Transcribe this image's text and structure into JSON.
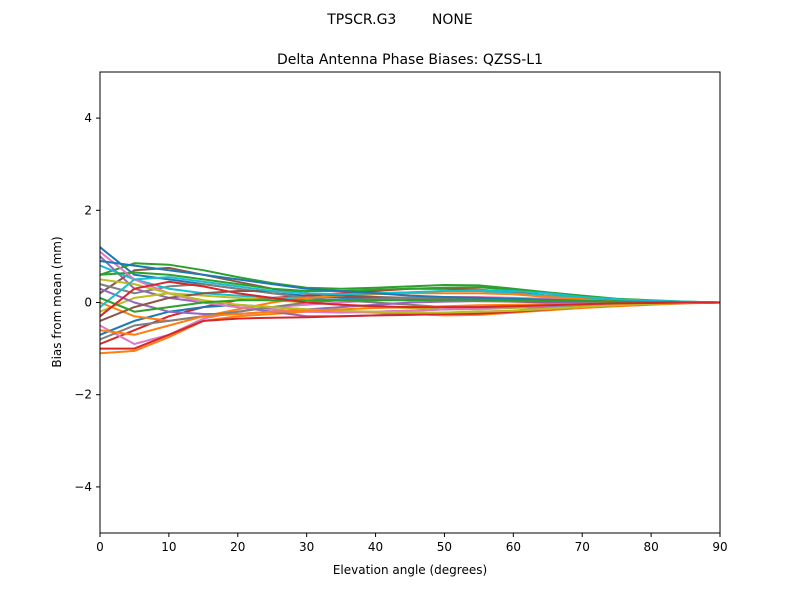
{
  "chart_data": {
    "type": "line",
    "suptitle": "TPSCR.G3        NONE",
    "title": "Delta Antenna Phase Biases: QZSS-L1",
    "xlabel": "Elevation angle (degrees)",
    "ylabel": "Bias from mean (mm)",
    "xlim": [
      0,
      90
    ],
    "ylim": [
      -5,
      5
    ],
    "xticks": [
      0,
      10,
      20,
      30,
      40,
      50,
      60,
      70,
      80,
      90
    ],
    "yticks": [
      -4,
      -2,
      0,
      2,
      4
    ],
    "ytick_labels": [
      "−4",
      "−2",
      "0",
      "2",
      "4"
    ],
    "grid": false,
    "colors": [
      "#1f77b4",
      "#ff7f0e",
      "#2ca02c",
      "#d62728",
      "#9467bd",
      "#8c564b",
      "#e377c2",
      "#7f7f7f",
      "#bcbd22",
      "#17becf"
    ],
    "x": [
      0,
      5,
      10,
      15,
      20,
      25,
      30,
      35,
      40,
      45,
      50,
      55,
      60,
      65,
      70,
      75,
      80,
      85,
      90
    ],
    "series": [
      {
        "values": [
          1.2,
          0.6,
          0.5,
          0.4,
          0.3,
          0.2,
          0.15,
          0.1,
          0.1,
          0.1,
          0.1,
          0.08,
          0.06,
          0.05,
          0.03,
          0.02,
          0.01,
          0.01,
          0
        ]
      },
      {
        "values": [
          -1.1,
          -1.05,
          -0.75,
          -0.4,
          -0.3,
          -0.25,
          -0.2,
          -0.2,
          -0.22,
          -0.25,
          -0.28,
          -0.27,
          -0.22,
          -0.17,
          -0.12,
          -0.08,
          -0.05,
          -0.02,
          0
        ]
      },
      {
        "values": [
          0.6,
          0.85,
          0.82,
          0.7,
          0.55,
          0.42,
          0.32,
          0.3,
          0.32,
          0.35,
          0.38,
          0.37,
          0.3,
          0.22,
          0.15,
          0.08,
          0.05,
          0.02,
          0
        ]
      },
      {
        "values": [
          -0.9,
          -0.6,
          -0.3,
          -0.1,
          0.05,
          0.1,
          0.15,
          0.2,
          0.25,
          0.3,
          0.3,
          0.28,
          0.22,
          0.15,
          0.1,
          0.05,
          0.03,
          0.01,
          0
        ]
      },
      {
        "values": [
          1.0,
          0.3,
          0.1,
          0,
          -0.1,
          -0.2,
          -0.3,
          -0.3,
          -0.28,
          -0.25,
          -0.22,
          -0.2,
          -0.18,
          -0.12,
          -0.08,
          -0.04,
          -0.02,
          -0.01,
          0
        ]
      },
      {
        "values": [
          0.2,
          0.7,
          0.75,
          0.6,
          0.45,
          0.3,
          0.2,
          0.15,
          0.1,
          0.08,
          0.05,
          0.03,
          0.02,
          0,
          -0.02,
          -0.02,
          -0.01,
          0,
          0
        ]
      },
      {
        "values": [
          -0.5,
          -0.9,
          -0.7,
          -0.35,
          -0.2,
          -0.1,
          -0.05,
          0,
          0.05,
          0.1,
          0.12,
          0.12,
          0.1,
          0.08,
          0.05,
          0.03,
          0.02,
          0.01,
          0
        ]
      },
      {
        "values": [
          0.4,
          0.2,
          0.35,
          0.4,
          0.3,
          0.2,
          0.1,
          0.05,
          0,
          -0.05,
          -0.1,
          -0.1,
          -0.1,
          -0.08,
          -0.05,
          -0.03,
          -0.02,
          -0.01,
          0
        ]
      },
      {
        "values": [
          -0.2,
          0.1,
          0.2,
          0.15,
          0.1,
          0.05,
          0,
          -0.05,
          -0.1,
          -0.12,
          -0.15,
          -0.15,
          -0.12,
          -0.1,
          -0.07,
          -0.04,
          -0.02,
          -0.01,
          0
        ]
      },
      {
        "values": [
          0.8,
          0.5,
          0.3,
          0.2,
          0.15,
          0.1,
          0.1,
          0.15,
          0.2,
          0.22,
          0.25,
          0.25,
          0.2,
          0.15,
          0.1,
          0.06,
          0.03,
          0.01,
          0
        ]
      },
      {
        "values": [
          -0.7,
          -0.4,
          -0.2,
          -0.1,
          -0.05,
          -0.1,
          -0.15,
          -0.2,
          -0.2,
          -0.18,
          -0.15,
          -0.12,
          -0.1,
          -0.08,
          -0.05,
          -0.03,
          -0.02,
          -0.01,
          0
        ]
      },
      {
        "values": [
          0,
          -0.3,
          -0.4,
          -0.3,
          -0.15,
          0,
          0.1,
          0.15,
          0.18,
          0.2,
          0.2,
          0.2,
          0.18,
          0.12,
          0.08,
          0.05,
          0.02,
          0.01,
          0
        ]
      },
      {
        "values": [
          0.6,
          0.65,
          0.6,
          0.5,
          0.4,
          0.3,
          0.25,
          0.25,
          0.28,
          0.3,
          0.32,
          0.33,
          0.28,
          0.2,
          0.12,
          0.06,
          0.03,
          0.01,
          0
        ]
      },
      {
        "values": [
          -1.0,
          -1.0,
          -0.7,
          -0.4,
          -0.35,
          -0.33,
          -0.32,
          -0.3,
          -0.28,
          -0.27,
          -0.25,
          -0.24,
          -0.2,
          -0.15,
          -0.1,
          -0.06,
          -0.03,
          -0.01,
          0
        ]
      },
      {
        "values": [
          0.3,
          0,
          -0.2,
          -0.25,
          -0.25,
          -0.2,
          -0.15,
          -0.1,
          -0.05,
          0,
          0.02,
          0.03,
          0.03,
          0.02,
          0.01,
          0.01,
          0,
          0,
          0
        ]
      },
      {
        "values": [
          -0.4,
          -0.1,
          0.1,
          0.2,
          0.25,
          0.25,
          0.2,
          0.15,
          0.12,
          0.1,
          0.08,
          0.06,
          0.05,
          0.04,
          0.03,
          0.02,
          0.01,
          0,
          0
        ]
      },
      {
        "values": [
          1.1,
          0.5,
          0.2,
          0,
          -0.1,
          -0.15,
          -0.2,
          -0.22,
          -0.2,
          -0.18,
          -0.15,
          -0.12,
          -0.1,
          -0.07,
          -0.05,
          -0.03,
          -0.02,
          -0.01,
          0
        ]
      },
      {
        "values": [
          -0.8,
          -0.5,
          -0.4,
          -0.3,
          -0.2,
          -0.1,
          0,
          0.05,
          0.08,
          0.1,
          0.1,
          0.1,
          0.08,
          0.05,
          0.03,
          0.02,
          0.01,
          0,
          0
        ]
      },
      {
        "values": [
          0.5,
          0.4,
          0.2,
          0.05,
          -0.05,
          -0.1,
          -0.15,
          -0.18,
          -0.2,
          -0.22,
          -0.22,
          -0.2,
          -0.18,
          -0.14,
          -0.1,
          -0.06,
          -0.03,
          -0.01,
          0
        ]
      },
      {
        "values": [
          -0.1,
          0.5,
          0.55,
          0.45,
          0.35,
          0.25,
          0.2,
          0.18,
          0.2,
          0.22,
          0.25,
          0.27,
          0.25,
          0.2,
          0.12,
          0.07,
          0.04,
          0.02,
          0
        ]
      },
      {
        "values": [
          0.9,
          0.8,
          0.7,
          0.6,
          0.5,
          0.4,
          0.3,
          0.25,
          0.2,
          0.15,
          0.12,
          0.1,
          0.08,
          0.06,
          0.04,
          0.02,
          0.01,
          0,
          0
        ]
      },
      {
        "values": [
          -0.6,
          -0.7,
          -0.5,
          -0.3,
          -0.25,
          -0.2,
          -0.18,
          -0.15,
          -0.12,
          -0.1,
          -0.08,
          -0.06,
          -0.05,
          -0.04,
          -0.03,
          -0.02,
          -0.01,
          0,
          0
        ]
      },
      {
        "values": [
          0.1,
          -0.2,
          -0.1,
          0,
          0.05,
          0.05,
          0.05,
          0.05,
          0.05,
          0.05,
          0.06,
          0.06,
          0.05,
          0.04,
          0.03,
          0.02,
          0.01,
          0,
          0
        ]
      },
      {
        "values": [
          -0.3,
          0.3,
          0.45,
          0.35,
          0.2,
          0.1,
          0,
          -0.05,
          -0.08,
          -0.1,
          -0.1,
          -0.1,
          -0.08,
          -0.06,
          -0.04,
          -0.02,
          -0.01,
          0,
          0
        ]
      }
    ]
  }
}
